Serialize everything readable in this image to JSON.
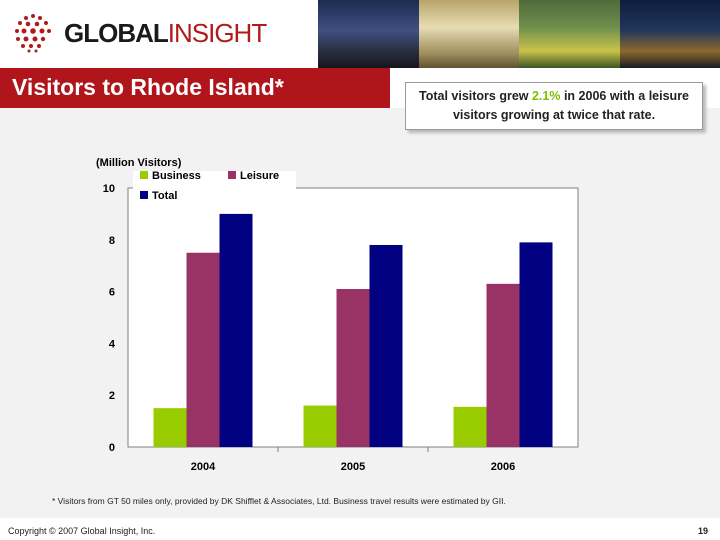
{
  "header": {
    "logo_part1": "GLOBAL",
    "logo_part2": "INSIGHT",
    "title": "Visitors to Rhode Island*",
    "callout_before": "Total visitors grew ",
    "callout_highlight": "2.1%",
    "callout_after": " in 2006 with a leisure visitors growing at twice that rate."
  },
  "colors": {
    "business": "#99cc00",
    "leisure": "#993366",
    "total": "#000080",
    "banner": "#b0151b"
  },
  "chart_data": {
    "type": "bar",
    "unit_label": "(Million Visitors)",
    "categories": [
      "2004",
      "2005",
      "2006"
    ],
    "series": [
      {
        "name": "Business",
        "values": [
          1.5,
          1.6,
          1.55
        ]
      },
      {
        "name": "Leisure",
        "values": [
          7.5,
          6.1,
          6.3
        ]
      },
      {
        "name": "Total",
        "values": [
          9.0,
          7.8,
          7.9
        ]
      }
    ],
    "ylim": [
      0,
      10
    ],
    "yticks": [
      "0",
      "2",
      "4",
      "6",
      "8",
      "10"
    ],
    "legend_position": "top-left",
    "grid": false
  },
  "footnote": "* Visitors from GT 50 miles only, provided by DK Shifflet & Associates, Ltd. Business travel results were estimated by GII.",
  "copyright": "Copyright © 2007 Global Insight, Inc.",
  "page_number": "19"
}
